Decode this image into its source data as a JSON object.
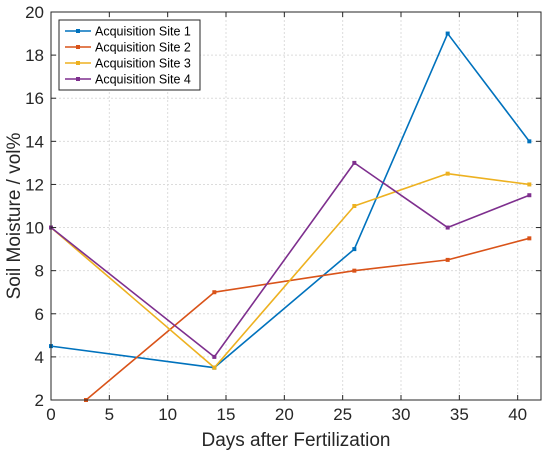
{
  "chart_data": {
    "type": "line",
    "title": "",
    "xlabel": "Days after Fertilization",
    "ylabel": "Soil Moisture / vol%",
    "xlim": [
      0,
      42
    ],
    "ylim": [
      2,
      20
    ],
    "xticks": [
      0,
      5,
      10,
      15,
      20,
      25,
      30,
      35,
      40
    ],
    "yticks": [
      2,
      4,
      6,
      8,
      10,
      12,
      14,
      16,
      18,
      20
    ],
    "grid": true,
    "legend_position": "top-left",
    "series": [
      {
        "name": "Acquisition Site 1",
        "color": "#0072BD",
        "x": [
          0,
          14,
          26,
          34,
          41
        ],
        "y": [
          4.5,
          3.5,
          9,
          19,
          14
        ]
      },
      {
        "name": "Acquisition Site 2",
        "color": "#D95319",
        "x": [
          3,
          14,
          26,
          34,
          41
        ],
        "y": [
          2,
          7,
          8,
          8.5,
          9.5
        ]
      },
      {
        "name": "Acquisition Site 3",
        "color": "#EDB120",
        "x": [
          0,
          14,
          26,
          34,
          41
        ],
        "y": [
          10,
          3.5,
          11,
          12.5,
          12
        ]
      },
      {
        "name": "Acquisition Site 4",
        "color": "#7E2F8E",
        "x": [
          0,
          14,
          26,
          34,
          41
        ],
        "y": [
          10,
          4,
          13,
          10,
          11.5
        ]
      }
    ]
  }
}
